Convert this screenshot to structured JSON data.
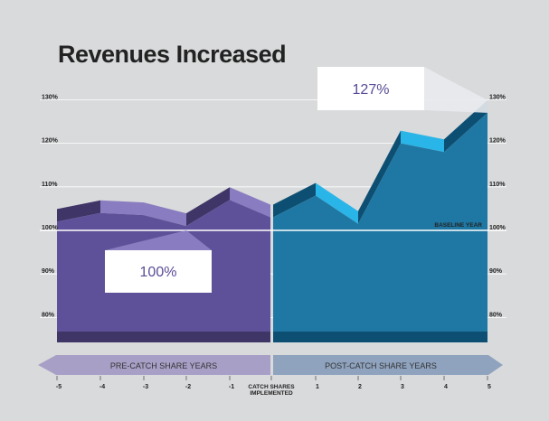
{
  "chart_data": {
    "type": "area",
    "title": "Revenues Increased",
    "x": [
      -5,
      -4,
      -3,
      -2,
      -1,
      0,
      1,
      2,
      3,
      4,
      5
    ],
    "x_tick_labels": [
      "-5",
      "-4",
      "-3",
      "-2",
      "-1",
      "1",
      "2",
      "3",
      "4",
      "5"
    ],
    "y_tick_labels": [
      "130%",
      "120%",
      "110%",
      "100%",
      "90%",
      "80%"
    ],
    "ylim": [
      75,
      132
    ],
    "series": [
      {
        "phase": "pre",
        "x": [
          -5,
          -4,
          -3,
          -2,
          -1,
          0
        ],
        "values": [
          102,
          104,
          103.5,
          101,
          107,
          103
        ]
      },
      {
        "phase": "post",
        "x": [
          0,
          1,
          2,
          3,
          4,
          5
        ],
        "values": [
          103,
          108,
          101.5,
          120,
          118,
          127
        ]
      }
    ],
    "baseline": {
      "value": 100,
      "label": "BASELINE YEAR"
    },
    "callouts": {
      "pre": "100%",
      "post": "127%"
    },
    "bands": {
      "pre": "PRE-CATCH SHARE YEARS",
      "post": "POST-CATCH SHARE YEARS"
    },
    "implemented_label": [
      "CATCH SHARES",
      "IMPLEMENTED"
    ],
    "colors": {
      "pre_front": "#5f5199",
      "pre_top": "#3f3566",
      "pre_light": "#8a7cc0",
      "post_front": "#1f78a3",
      "post_top": "#0d4f72",
      "post_light": "#2ab5e8",
      "pre_band": "#a89fc6",
      "post_band": "#8fa3bf",
      "callout_pre_text": "#5a4b96",
      "callout_post_text": "#5a4b96"
    }
  }
}
